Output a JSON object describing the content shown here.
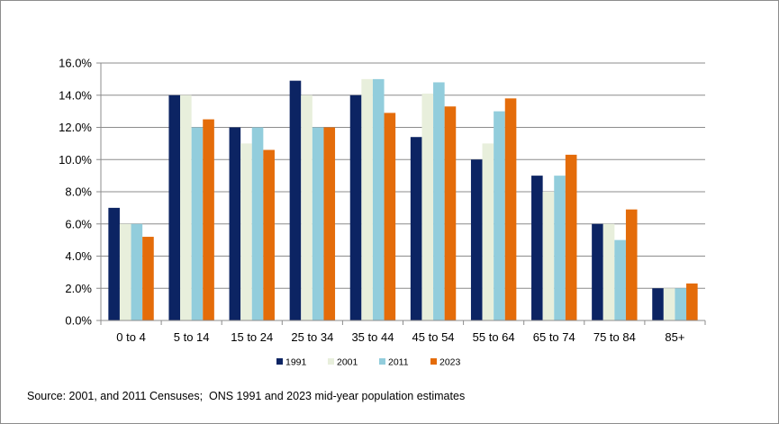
{
  "chart_data": {
    "type": "bar",
    "title": "",
    "xlabel": "",
    "ylabel": "",
    "categories": [
      "0 to 4",
      "5 to 14",
      "15 to 24",
      "25 to 34",
      "35 to 44",
      "45 to 54",
      "55 to 64",
      "65 to 74",
      "75 to 84",
      "85+"
    ],
    "series": [
      {
        "name": "1991",
        "color": "#0c2463",
        "values": [
          7.0,
          14.0,
          12.0,
          14.9,
          14.0,
          11.4,
          10.0,
          9.0,
          6.0,
          2.0
        ]
      },
      {
        "name": "2001",
        "color": "#e8efdc",
        "values": [
          6.0,
          14.0,
          11.0,
          14.0,
          15.0,
          14.1,
          11.0,
          8.0,
          6.0,
          2.0
        ]
      },
      {
        "name": "2011",
        "color": "#92cddc",
        "values": [
          6.0,
          12.0,
          12.0,
          12.0,
          15.0,
          14.8,
          13.0,
          9.0,
          5.0,
          2.0
        ]
      },
      {
        "name": "2023",
        "color": "#e46c0a",
        "values": [
          5.2,
          12.5,
          10.6,
          12.0,
          12.9,
          13.3,
          13.8,
          10.3,
          6.9,
          2.3
        ]
      }
    ],
    "ylim": [
      0,
      16
    ],
    "yticks": [
      "0.0%",
      "2.0%",
      "4.0%",
      "6.0%",
      "8.0%",
      "10.0%",
      "12.0%",
      "14.0%",
      "16.0%"
    ],
    "grid": true,
    "legend_position": "bottom"
  },
  "source": "Source: 2001, and 2011 Censuses;  ONS 1991 and 2023 mid-year population estimates"
}
